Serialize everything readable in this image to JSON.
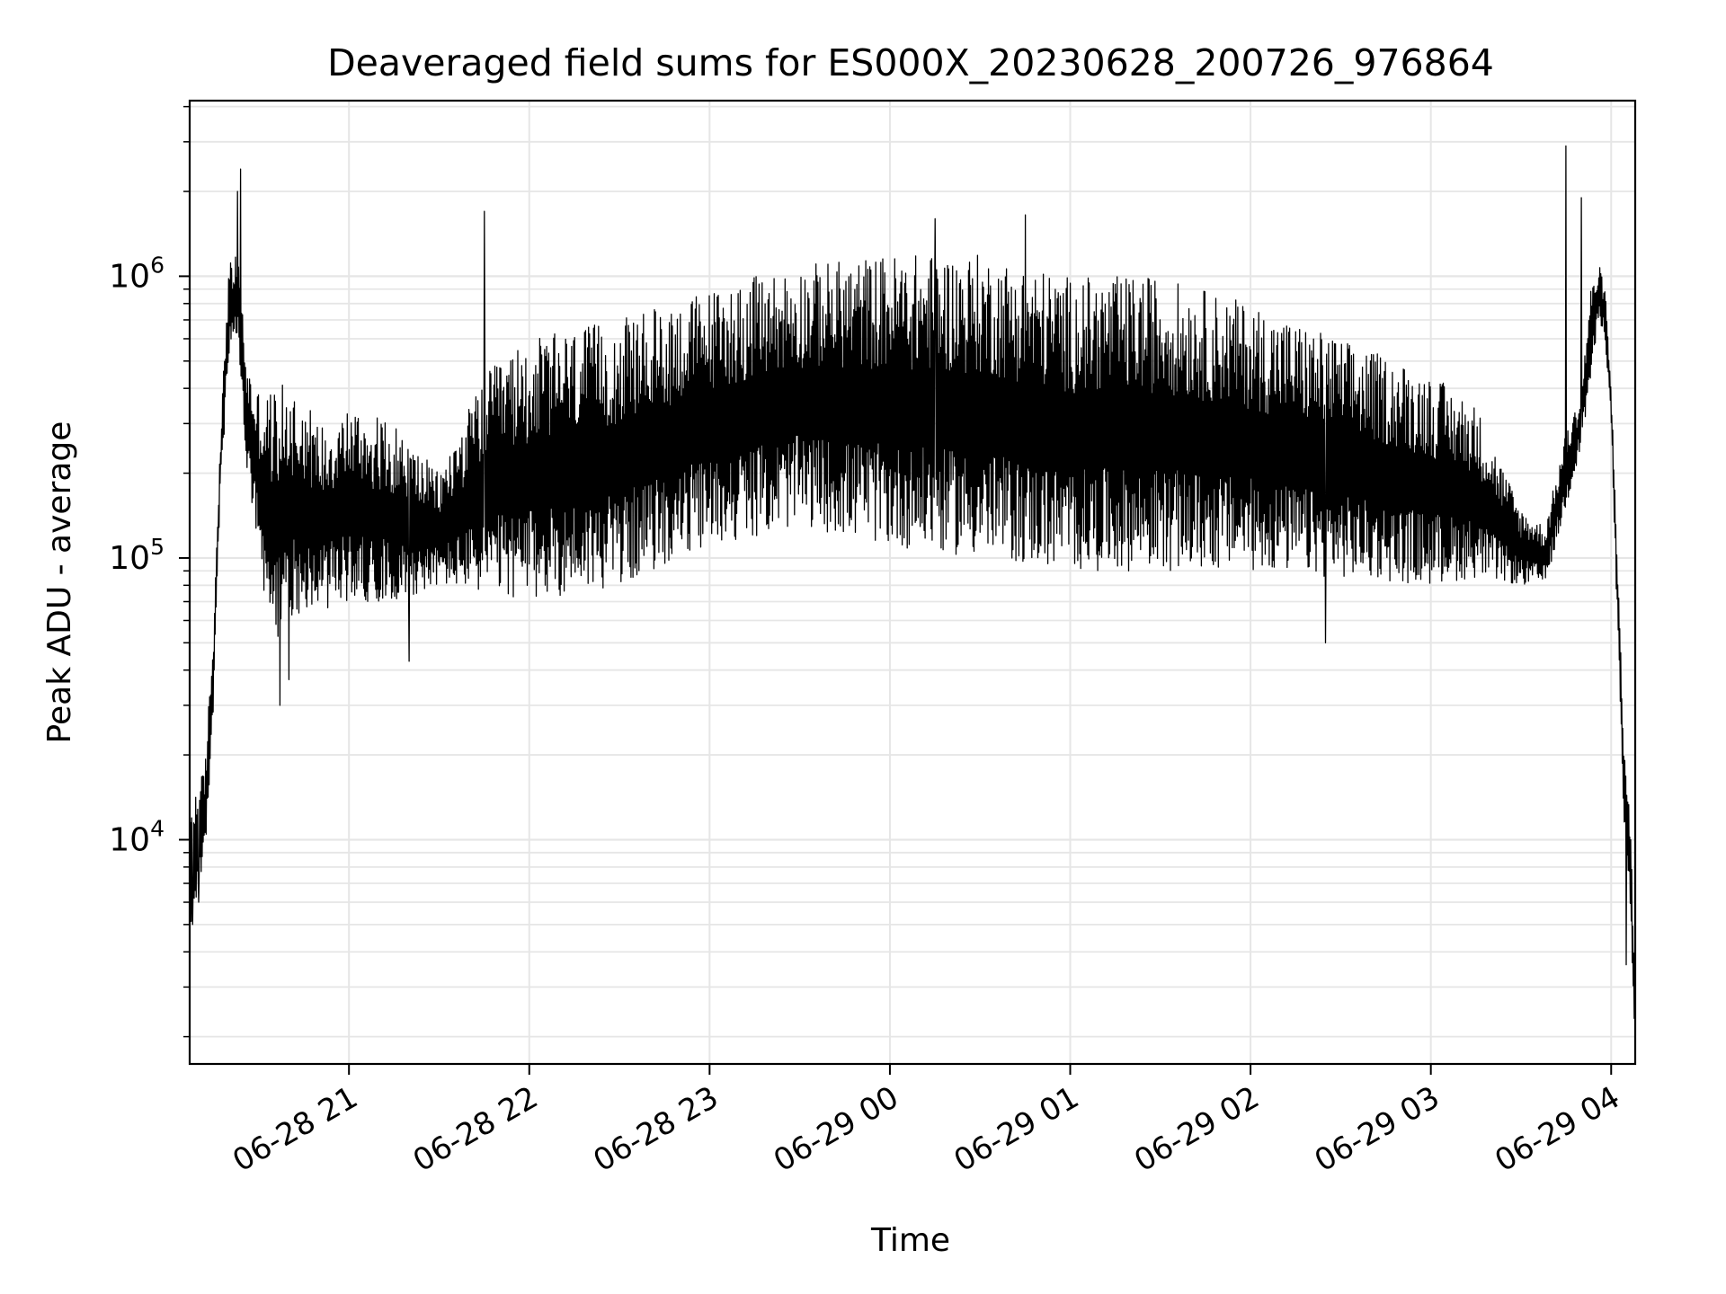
{
  "chart_data": {
    "type": "line",
    "title": "Deaveraged field sums for ES000X_20230628_200726_976864",
    "xlabel": "Time",
    "ylabel": "Peak ADU - average",
    "y_scale": "log",
    "ylim": [
      1600,
      4200000
    ],
    "xlim": [
      "2023-06-28 20:07",
      "2023-06-29 04:08"
    ],
    "grid": true,
    "line_color": "#000000",
    "grid_color": "#e6e6e6",
    "x_ticks": [
      "06-28 21",
      "06-28 22",
      "06-28 23",
      "06-29 00",
      "06-29 01",
      "06-29 02",
      "06-29 03",
      "06-29 04"
    ],
    "x_tick_times": [
      "2023-06-28 21:00",
      "2023-06-28 22:00",
      "2023-06-28 23:00",
      "2023-06-29 00:00",
      "2023-06-29 01:00",
      "2023-06-29 02:00",
      "2023-06-29 03:00",
      "2023-06-29 04:00"
    ],
    "y_ticks": [
      {
        "value": 10000,
        "base": "10",
        "exp": "4"
      },
      {
        "value": 100000,
        "base": "10",
        "exp": "5"
      },
      {
        "value": 1000000,
        "base": "10",
        "exp": "6"
      }
    ],
    "envelope": {
      "x": [
        "2023-06-28 20:07",
        "2023-06-28 20:10",
        "2023-06-28 20:12",
        "2023-06-28 20:15",
        "2023-06-28 20:17",
        "2023-06-28 20:20",
        "2023-06-28 20:23",
        "2023-06-28 20:26",
        "2023-06-28 20:29",
        "2023-06-28 20:32",
        "2023-06-28 20:35",
        "2023-06-28 20:40",
        "2023-06-28 20:45",
        "2023-06-28 20:50",
        "2023-06-28 21:00",
        "2023-06-28 21:15",
        "2023-06-28 21:30",
        "2023-06-28 21:45",
        "2023-06-28 22:00",
        "2023-06-28 22:30",
        "2023-06-28 23:00",
        "2023-06-28 23:30",
        "2023-06-29 00:00",
        "2023-06-29 00:30",
        "2023-06-29 01:00",
        "2023-06-29 01:30",
        "2023-06-29 02:00",
        "2023-06-29 02:30",
        "2023-06-29 03:00",
        "2023-06-29 03:15",
        "2023-06-29 03:30",
        "2023-06-29 03:38",
        "2023-06-29 03:45",
        "2023-06-29 03:50",
        "2023-06-29 03:53",
        "2023-06-29 03:56",
        "2023-06-29 03:58",
        "2023-06-29 04:00",
        "2023-06-29 04:02",
        "2023-06-29 04:04",
        "2023-06-29 04:06",
        "2023-06-29 04:08"
      ],
      "low": [
        4000,
        7000,
        8000,
        30000,
        150000,
        500000,
        600000,
        200000,
        120000,
        60000,
        50000,
        60000,
        65000,
        65000,
        70000,
        70000,
        80000,
        75000,
        70000,
        80000,
        110000,
        130000,
        110000,
        100000,
        90000,
        90000,
        90000,
        85000,
        80000,
        85000,
        80000,
        80000,
        150000,
        250000,
        400000,
        700000,
        600000,
        300000,
        60000,
        12000,
        6000,
        1800
      ],
      "high": [
        14000,
        16000,
        18000,
        60000,
        250000,
        1100000,
        1200000,
        500000,
        400000,
        400000,
        400000,
        420000,
        380000,
        300000,
        350000,
        300000,
        200000,
        450000,
        600000,
        700000,
        900000,
        1100000,
        1200000,
        1200000,
        1000000,
        1000000,
        800000,
        600000,
        450000,
        350000,
        150000,
        130000,
        280000,
        380000,
        900000,
        1100000,
        900000,
        400000,
        120000,
        25000,
        15000,
        3500
      ]
    },
    "spike_maxima": [
      {
        "x": "2023-06-28 20:24",
        "y": 2400000
      },
      {
        "x": "2023-06-28 20:23",
        "y": 2000000
      },
      {
        "x": "2023-06-28 21:45",
        "y": 1700000
      },
      {
        "x": "2023-06-29 00:15",
        "y": 1600000
      },
      {
        "x": "2023-06-29 00:45",
        "y": 1650000
      },
      {
        "x": "2023-06-29 03:45",
        "y": 2900000
      },
      {
        "x": "2023-06-29 03:50",
        "y": 1900000
      }
    ],
    "spike_minima": [
      {
        "x": "2023-06-28 20:08",
        "y": 5000
      },
      {
        "x": "2023-06-28 20:10",
        "y": 6000
      },
      {
        "x": "2023-06-28 20:37",
        "y": 30000
      },
      {
        "x": "2023-06-28 20:40",
        "y": 37000
      },
      {
        "x": "2023-06-28 21:20",
        "y": 43000
      },
      {
        "x": "2023-06-29 02:25",
        "y": 50000
      },
      {
        "x": "2023-06-29 04:05",
        "y": 3600
      }
    ]
  }
}
